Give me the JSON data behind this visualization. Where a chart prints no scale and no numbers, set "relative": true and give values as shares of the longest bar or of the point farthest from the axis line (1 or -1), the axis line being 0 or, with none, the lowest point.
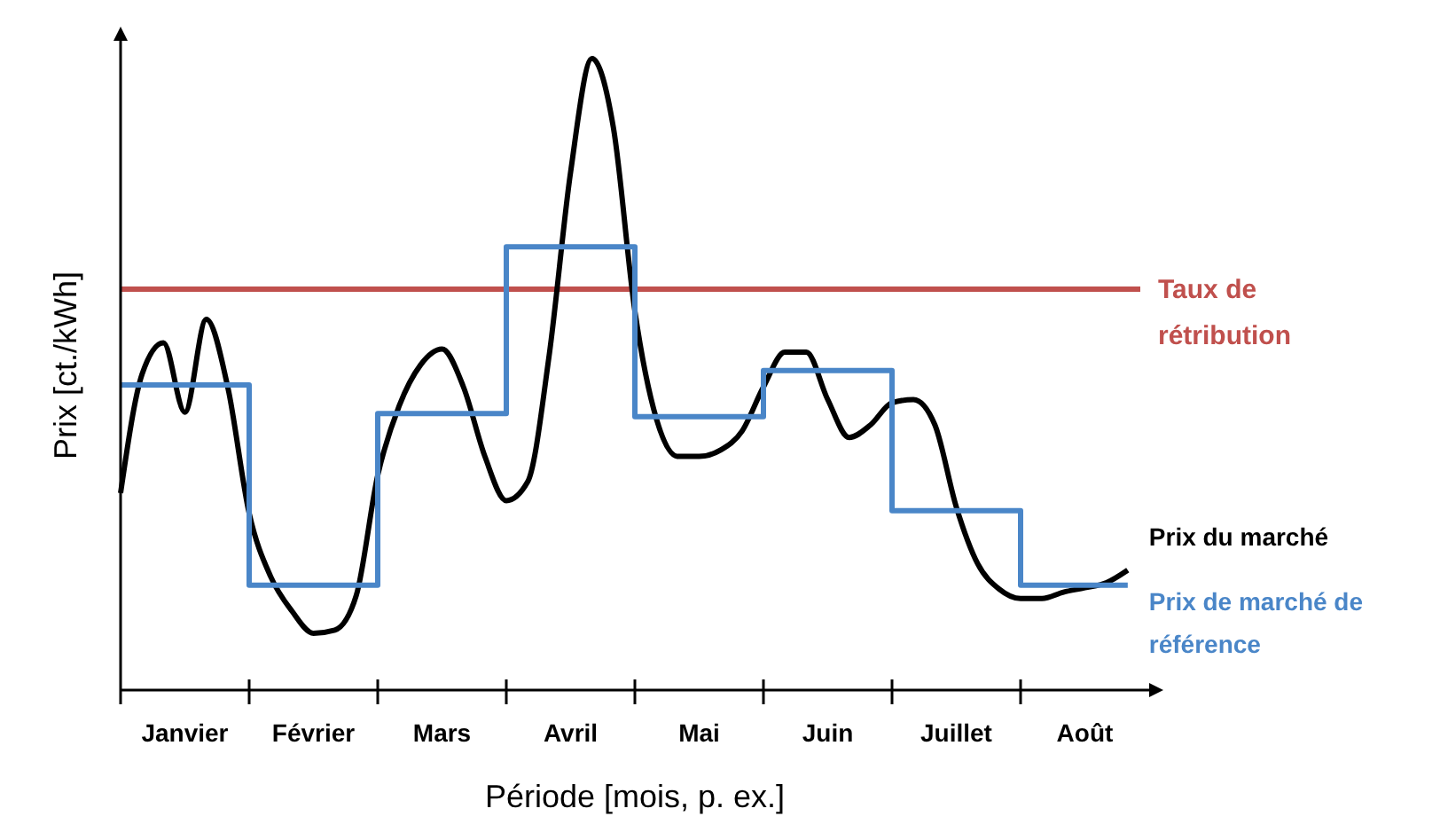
{
  "chart_data": {
    "type": "line",
    "relative": true,
    "xlabel": "Période [mois, p. ex.]",
    "ylabel": "Prix [ct./kWh]",
    "categories": [
      null,
      null,
      null,
      "Janvier",
      null,
      null,
      null,
      null,
      null,
      "Février",
      null,
      null,
      null,
      null,
      null,
      "Mars",
      null,
      null,
      null,
      null,
      null,
      "Avril",
      null,
      null,
      null,
      null,
      null,
      "Mai",
      null,
      null,
      null,
      null,
      null,
      "Juin",
      null,
      null,
      null,
      null,
      null,
      "Juillet",
      null,
      null,
      null,
      null,
      null,
      "Août",
      null,
      null
    ],
    "legend": "right",
    "series": [
      {
        "name": "Prix du marché",
        "color": "#000000",
        "type": "line",
        "values": [
          0.312,
          0.5,
          0.55,
          0.44,
          0.587,
          0.48,
          0.28,
          0.18,
          0.125,
          0.09,
          0.095,
          0.15,
          0.34,
          0.45,
          0.515,
          0.54,
          0.48,
          0.37,
          0.3,
          0.33,
          0.53,
          0.82,
          1.0,
          0.89,
          0.6,
          0.43,
          0.37,
          0.37,
          0.38,
          0.41,
          0.48,
          0.535,
          0.535,
          0.46,
          0.4,
          0.42,
          0.455,
          0.46,
          0.42,
          0.29,
          0.2,
          0.16,
          0.145,
          0.145,
          0.155,
          0.162,
          0.17,
          0.19
        ]
      },
      {
        "name": "Prix de marché de référence",
        "color": "#4a86c8",
        "type": "step",
        "values": [
          0.483,
          0.483,
          0.483,
          0.483,
          0.483,
          0.483,
          0.166,
          0.166,
          0.166,
          0.166,
          0.166,
          0.166,
          0.438,
          0.438,
          0.438,
          0.438,
          0.438,
          0.438,
          0.702,
          0.702,
          0.702,
          0.702,
          0.702,
          0.702,
          0.433,
          0.433,
          0.433,
          0.433,
          0.433,
          0.433,
          0.506,
          0.506,
          0.506,
          0.506,
          0.506,
          0.506,
          0.284,
          0.284,
          0.284,
          0.284,
          0.284,
          0.284,
          0.166,
          0.166,
          0.166,
          0.166,
          0.166,
          0.166
        ]
      }
    ],
    "ref_lines": [
      {
        "axis": "y",
        "value": 0.635,
        "label": "Taux de rétribution",
        "color": "#c0504d"
      }
    ]
  }
}
